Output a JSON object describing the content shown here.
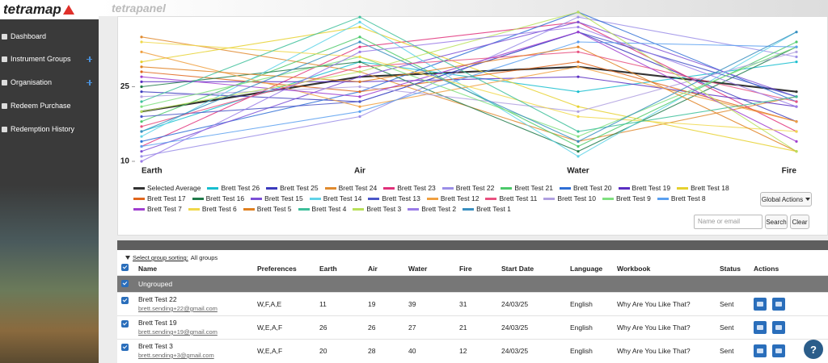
{
  "header": {
    "logo": "tetramap",
    "app": "tetrapanel"
  },
  "nav": [
    "Dashboard",
    "Instrument Groups",
    "Organisation",
    "Redeem Purchase",
    "Redemption History"
  ],
  "chart_data": {
    "type": "line",
    "categories": [
      "Earth",
      "Air",
      "Water",
      "Fire"
    ],
    "ylim": [
      10,
      40
    ],
    "yticks": [
      10,
      25
    ],
    "grid": false,
    "series": [
      {
        "name": "Selected Average",
        "color": "#333333",
        "values": [
          20,
          27,
          29,
          24
        ]
      },
      {
        "name": "Brett Test 26",
        "color": "#17becf",
        "values": [
          16,
          30,
          24,
          30
        ]
      },
      {
        "name": "Brett Test 25",
        "color": "#3b3bbd",
        "values": [
          24,
          22,
          36,
          18
        ]
      },
      {
        "name": "Brett Test 24",
        "color": "#e08a2e",
        "values": [
          35,
          28,
          14,
          23
        ]
      },
      {
        "name": "Brett Test 23",
        "color": "#e0307a",
        "values": [
          13,
          33,
          38,
          16
        ]
      },
      {
        "name": "Brett Test 22",
        "color": "#9b8ee8",
        "values": [
          11,
          19,
          39,
          31
        ]
      },
      {
        "name": "Brett Test 21",
        "color": "#4cc96a",
        "values": [
          18,
          35,
          13,
          34
        ]
      },
      {
        "name": "Brett Test 20",
        "color": "#2f6fd6",
        "values": [
          14,
          24,
          40,
          22
        ]
      },
      {
        "name": "Brett Test 19",
        "color": "#5a2ec2",
        "values": [
          26,
          26,
          27,
          21
        ]
      },
      {
        "name": "Brett Test 18",
        "color": "#e6d12e",
        "values": [
          30,
          37,
          21,
          12
        ]
      },
      {
        "name": "Brett Test 17",
        "color": "#e0661c",
        "values": [
          28,
          24,
          30,
          18
        ]
      },
      {
        "name": "Brett Test 16",
        "color": "#1f7a4a",
        "values": [
          25,
          30,
          12,
          33
        ]
      },
      {
        "name": "Brett Test 15",
        "color": "#7b4fd6",
        "values": [
          12,
          27,
          38,
          23
        ]
      },
      {
        "name": "Brett Test 14",
        "color": "#5fd3e8",
        "values": [
          15,
          38,
          11,
          36
        ]
      },
      {
        "name": "Brett Test 13",
        "color": "#4a56c8",
        "values": [
          19,
          22,
          36,
          23
        ]
      },
      {
        "name": "Brett Test 12",
        "color": "#f0a040",
        "values": [
          32,
          21,
          29,
          18
        ]
      },
      {
        "name": "Brett Test 11",
        "color": "#e8507f",
        "values": [
          17,
          29,
          32,
          22
        ]
      },
      {
        "name": "Brett Test 10",
        "color": "#b0a0e0",
        "values": [
          23,
          25,
          20,
          32
        ]
      },
      {
        "name": "Brett Test 9",
        "color": "#7fe07f",
        "values": [
          21,
          31,
          15,
          33
        ]
      },
      {
        "name": "Brett Test 8",
        "color": "#5aa0f0",
        "values": [
          13,
          20,
          34,
          33
        ]
      },
      {
        "name": "Brett Test 7",
        "color": "#a03ed0",
        "values": [
          27,
          23,
          36,
          14
        ]
      },
      {
        "name": "Brett Test 6",
        "color": "#f0d84a",
        "values": [
          34,
          31,
          19,
          16
        ]
      },
      {
        "name": "Brett Test 5",
        "color": "#e08020",
        "values": [
          29,
          26,
          33,
          12
        ]
      },
      {
        "name": "Brett Test 4",
        "color": "#3dbf9a",
        "values": [
          22,
          39,
          16,
          23
        ]
      },
      {
        "name": "Brett Test 3",
        "color": "#b8e05a",
        "values": [
          20,
          28,
          40,
          12
        ]
      },
      {
        "name": "Brett Test 2",
        "color": "#9a7be8",
        "values": [
          10,
          32,
          37,
          21
        ]
      },
      {
        "name": "Brett Test 1",
        "color": "#3a8fc0",
        "values": [
          16,
          34,
          14,
          36
        ]
      }
    ]
  },
  "controls": {
    "global_actions": "Global Actions",
    "search_placeholder": "Name or email",
    "search": "Search",
    "clear": "Clear"
  },
  "table": {
    "sort_label": "Select group sorting:",
    "sort_value": "All groups",
    "columns": [
      "Name",
      "Preferences",
      "Earth",
      "Air",
      "Water",
      "Fire",
      "Start Date",
      "Language",
      "Workbook",
      "Status",
      "Actions"
    ],
    "group": "Ungrouped",
    "rows": [
      {
        "name": "Brett Test 22",
        "email": "brett.sending+22@gmail.com",
        "preferences": "W,F,A,E",
        "earth": "11",
        "air": "19",
        "water": "39",
        "fire": "31",
        "start_date": "24/03/25",
        "language": "English",
        "workbook": "Why Are You Like That?",
        "status": "Sent"
      },
      {
        "name": "Brett Test 19",
        "email": "brett.sending+19@gmail.com",
        "preferences": "W,E,A,F",
        "earth": "26",
        "air": "26",
        "water": "27",
        "fire": "21",
        "start_date": "24/03/25",
        "language": "English",
        "workbook": "Why Are You Like That?",
        "status": "Sent"
      },
      {
        "name": "Brett Test 3",
        "email": "brett.sending+3@gmail.com",
        "preferences": "W,E,A,F",
        "earth": "20",
        "air": "28",
        "water": "40",
        "fire": "12",
        "start_date": "24/03/25",
        "language": "English",
        "workbook": "Why Are You Like That?",
        "status": "Sent"
      }
    ]
  },
  "help": "?"
}
